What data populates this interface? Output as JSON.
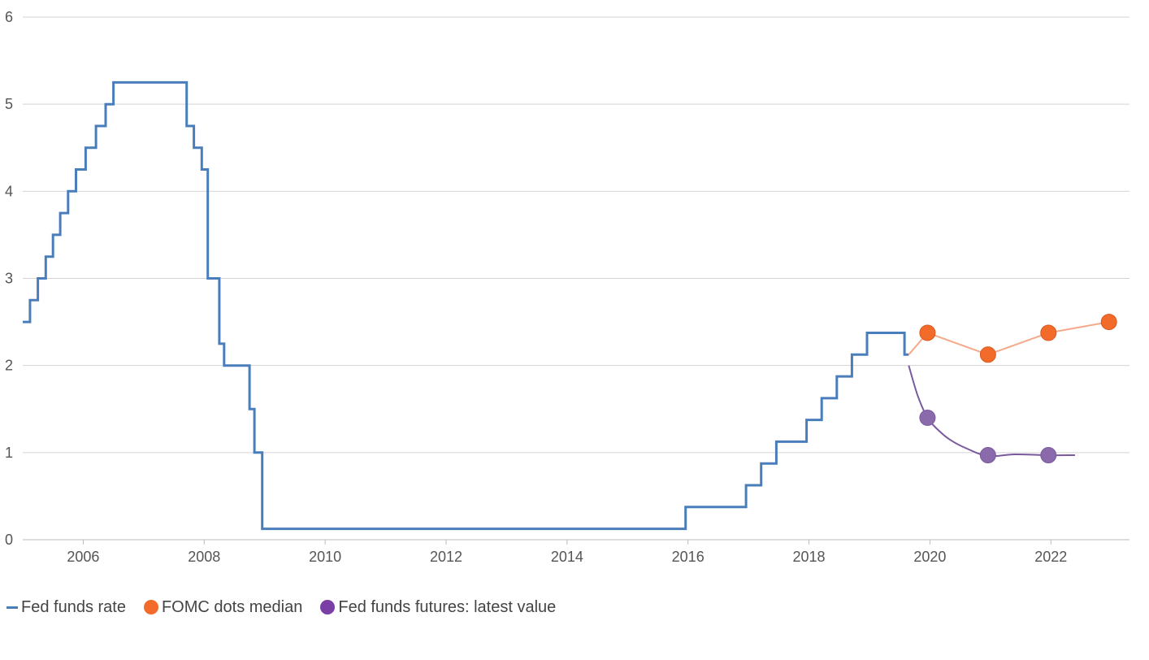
{
  "chart_data": {
    "type": "line",
    "title": "",
    "xlabel": "",
    "ylabel": "",
    "xlim": [
      2005.0,
      2023.3
    ],
    "ylim": [
      0,
      6
    ],
    "x_ticks": [
      2006,
      2008,
      2010,
      2012,
      2014,
      2016,
      2018,
      2020,
      2022
    ],
    "y_ticks": [
      0,
      1,
      2,
      3,
      4,
      5,
      6
    ],
    "grid": "horizontal",
    "legend_position": "bottom-left",
    "series": [
      {
        "name": "Fed funds rate",
        "kind": "step",
        "color": "#4a7ebb",
        "points": [
          [
            2005.0,
            2.5
          ],
          [
            2005.12,
            2.75
          ],
          [
            2005.25,
            3.0
          ],
          [
            2005.38,
            3.25
          ],
          [
            2005.5,
            3.5
          ],
          [
            2005.62,
            3.75
          ],
          [
            2005.75,
            4.0
          ],
          [
            2005.88,
            4.25
          ],
          [
            2006.04,
            4.5
          ],
          [
            2006.21,
            4.75
          ],
          [
            2006.37,
            5.0
          ],
          [
            2006.5,
            5.25
          ],
          [
            2007.71,
            4.75
          ],
          [
            2007.83,
            4.5
          ],
          [
            2007.96,
            4.25
          ],
          [
            2008.06,
            3.0
          ],
          [
            2008.25,
            2.25
          ],
          [
            2008.33,
            2.0
          ],
          [
            2008.75,
            1.5
          ],
          [
            2008.83,
            1.0
          ],
          [
            2008.96,
            0.125
          ],
          [
            2015.96,
            0.375
          ],
          [
            2016.96,
            0.625
          ],
          [
            2017.21,
            0.875
          ],
          [
            2017.46,
            1.125
          ],
          [
            2017.96,
            1.375
          ],
          [
            2018.21,
            1.625
          ],
          [
            2018.46,
            1.875
          ],
          [
            2018.71,
            2.125
          ],
          [
            2018.96,
            2.375
          ],
          [
            2019.58,
            2.125
          ],
          [
            2019.65,
            2.125
          ]
        ]
      },
      {
        "name": "FOMC dots median",
        "kind": "dots",
        "color": "#f26b2a",
        "line_color": "#f5a98a",
        "line_start": [
          2019.65,
          2.125
        ],
        "points": [
          [
            2019.96,
            2.375
          ],
          [
            2020.96,
            2.125
          ],
          [
            2021.96,
            2.375
          ],
          [
            2022.96,
            2.5
          ]
        ]
      },
      {
        "name": "Fed funds futures: latest value",
        "kind": "dots",
        "color": "#8a6aab",
        "legend_color": "#7a3ea5",
        "line_color": "#7a5a9e",
        "line_points": [
          [
            2019.65,
            2.0
          ],
          [
            2019.8,
            1.65
          ],
          [
            2019.96,
            1.4
          ],
          [
            2020.15,
            1.25
          ],
          [
            2020.35,
            1.14
          ],
          [
            2020.6,
            1.05
          ],
          [
            2020.96,
            0.96
          ],
          [
            2021.4,
            0.98
          ],
          [
            2021.96,
            0.97
          ],
          [
            2022.4,
            0.97
          ]
        ],
        "points": [
          [
            2019.96,
            1.4
          ],
          [
            2020.96,
            0.97
          ],
          [
            2021.96,
            0.97
          ]
        ]
      }
    ]
  }
}
